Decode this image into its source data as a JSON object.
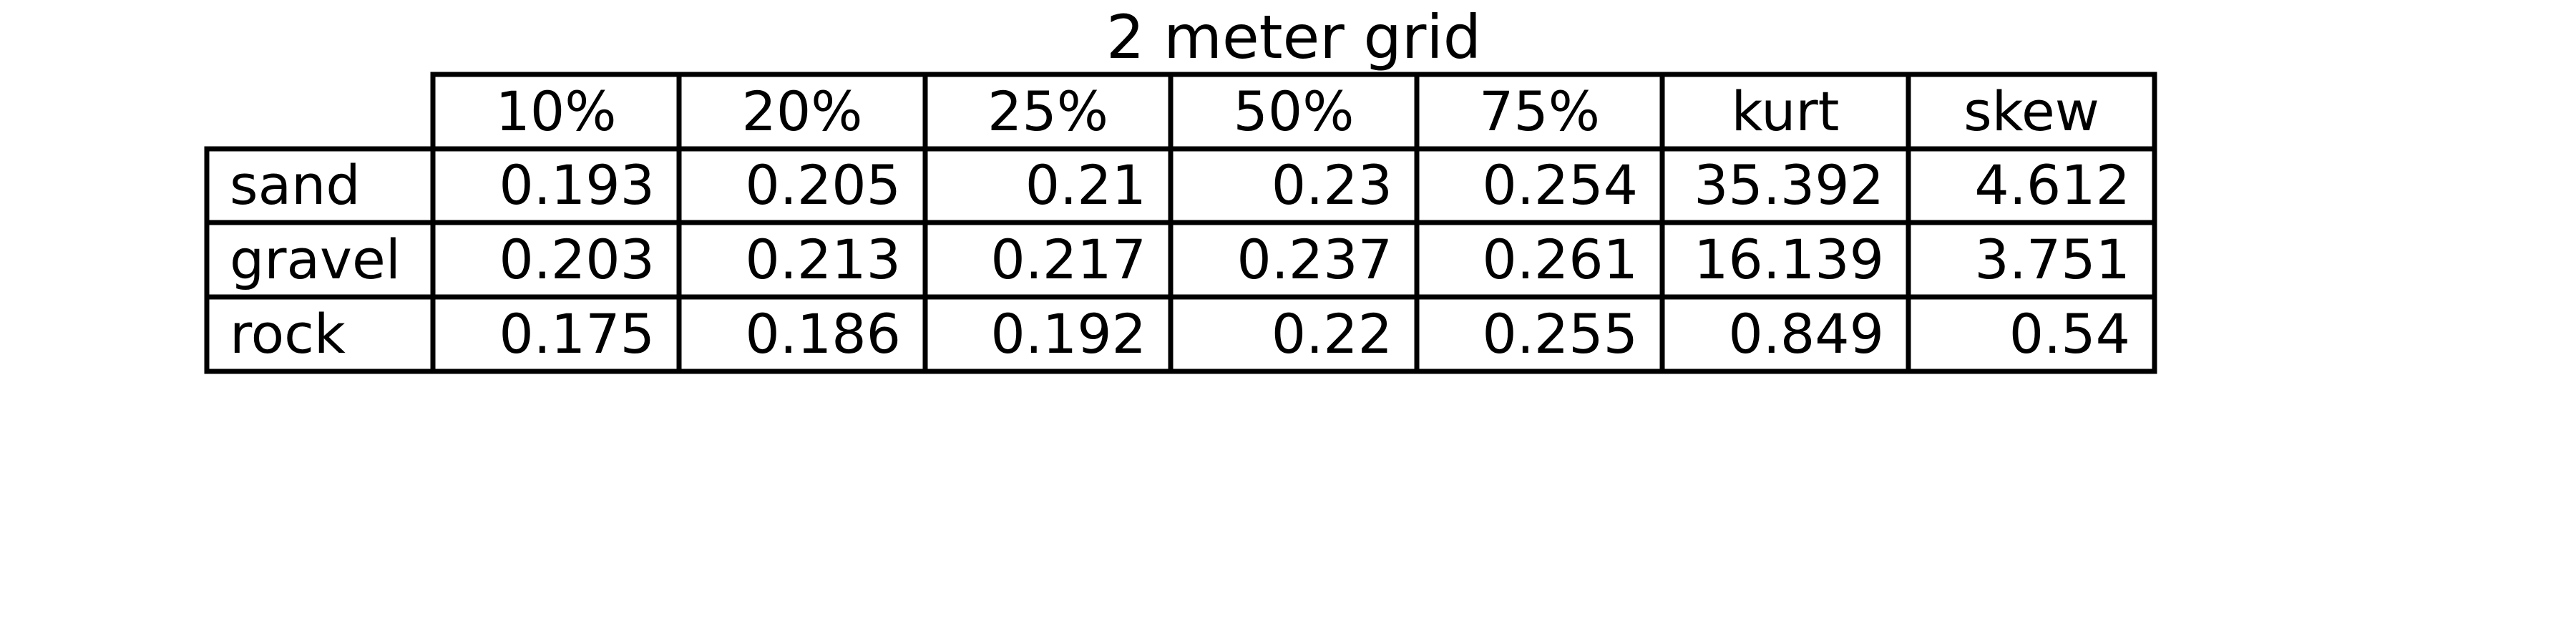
{
  "chart_data": {
    "type": "table",
    "title": "2 meter grid",
    "columns": [
      "10%",
      "20%",
      "25%",
      "50%",
      "75%",
      "kurt",
      "skew"
    ],
    "rows": [
      {
        "label": "sand",
        "values": [
          "0.193",
          "0.205",
          "0.21",
          "0.23",
          "0.254",
          "35.392",
          "4.612"
        ]
      },
      {
        "label": "gravel",
        "values": [
          "0.203",
          "0.213",
          "0.217",
          "0.237",
          "0.261",
          "16.139",
          "3.751"
        ]
      },
      {
        "label": "rock",
        "values": [
          "0.175",
          "0.186",
          "0.192",
          "0.22",
          "0.255",
          "0.849",
          "0.54"
        ]
      }
    ]
  }
}
